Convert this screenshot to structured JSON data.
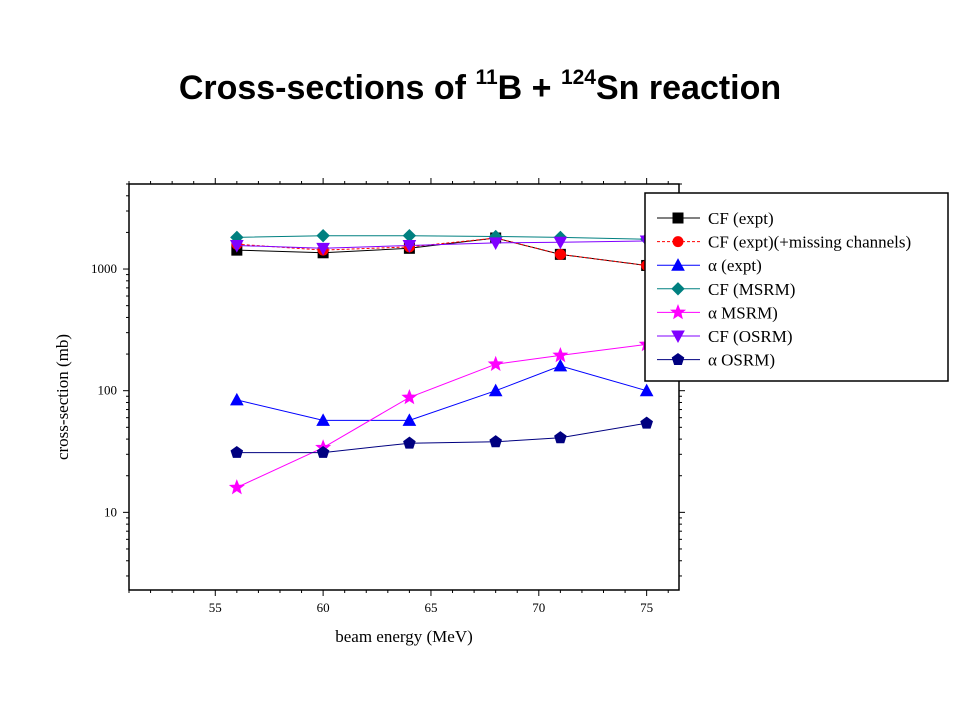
{
  "title": {
    "prefix": "Cross-sections of ",
    "sup1": "11",
    "mid": "B + ",
    "sup2": "124",
    "suffix": "Sn reaction"
  },
  "chart_data": {
    "type": "line",
    "title": "Cross-sections of 11B + 124Sn reaction",
    "xlabel": "beam energy (MeV)",
    "ylabel": "cross-section (mb)",
    "xlim": [
      51,
      76.5
    ],
    "ylim": [
      2.3,
      5000
    ],
    "yscale": "log",
    "x_ticks": [
      "55",
      "60",
      "65",
      "70",
      "75"
    ],
    "y_ticks": [
      "10",
      "100",
      "1000"
    ],
    "legend_position": "top-right",
    "x": [
      56,
      60,
      64,
      68,
      71,
      75
    ],
    "series": [
      {
        "name": "CF (expt)",
        "values": [
          1430,
          1360,
          1480,
          1800,
          1320,
          1070
        ],
        "color": "#000000",
        "marker": "square",
        "dash": "solid"
      },
      {
        "name": "CF (expt)(+missing channels)",
        "values": [
          1600,
          1430,
          1520,
          1800,
          1320,
          1070
        ],
        "color": "#ff0000",
        "marker": "circle",
        "dash": "dashed"
      },
      {
        "name": "α (expt)",
        "values": [
          84,
          57,
          57,
          100,
          160,
          100
        ],
        "color": "#0000ff",
        "marker": "triangle-up",
        "dash": "solid"
      },
      {
        "name": "CF (MSRM)",
        "values": [
          1820,
          1880,
          1880,
          1850,
          1820,
          1760
        ],
        "color": "#008080",
        "marker": "diamond",
        "dash": "solid"
      },
      {
        "name": "α MSRM)",
        "values": [
          16,
          34,
          88,
          165,
          195,
          240
        ],
        "color": "#ff00ff",
        "marker": "star",
        "dash": "solid"
      },
      {
        "name": "CF (OSRM)",
        "values": [
          1560,
          1480,
          1560,
          1640,
          1660,
          1700
        ],
        "color": "#8000ff",
        "marker": "triangle-down",
        "dash": "solid"
      },
      {
        "name": "α OSRM)",
        "values": [
          31,
          31,
          37,
          38,
          41,
          54
        ],
        "color": "#000080",
        "marker": "pentagon",
        "dash": "solid"
      }
    ]
  }
}
